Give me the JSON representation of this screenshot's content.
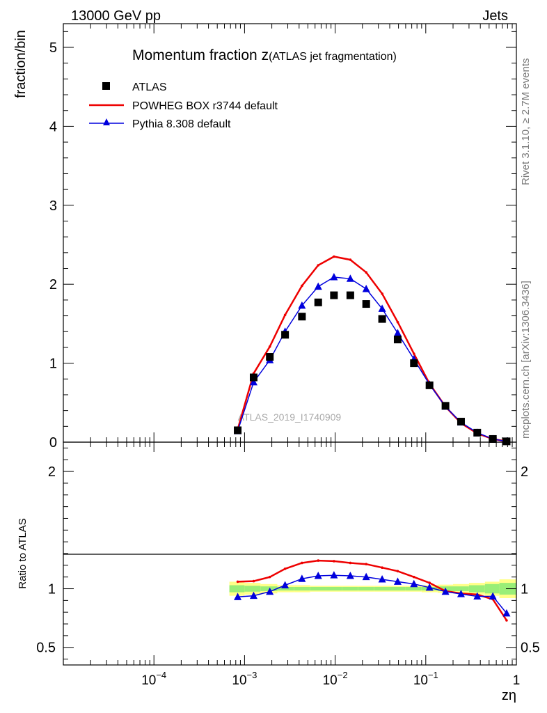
{
  "header": {
    "left": "13000 GeV pp",
    "right": "Jets"
  },
  "side_text": {
    "rivet": "Rivet 3.1.10, ≥ 2.7M events",
    "mcplots": "mcplots.cern.ch [arXiv:1306.3436]"
  },
  "chart_data": [
    {
      "type": "scatter",
      "title_main": "Momentum fraction z",
      "title_sub": "(ATLAS jet fragmentation)",
      "ylabel": "fraction/bin",
      "xscale": "log",
      "xlim": [
        1e-05,
        1
      ],
      "ylim": [
        0,
        5.3
      ],
      "yticks": [
        "0",
        "1",
        "2",
        "3",
        "4",
        "5"
      ],
      "watermark": "ATLAS_2019_I1740909",
      "legend_position": "top-left",
      "x": [
        0.00084,
        0.00126,
        0.0019,
        0.0028,
        0.0043,
        0.0065,
        0.0097,
        0.0147,
        0.022,
        0.033,
        0.049,
        0.074,
        0.11,
        0.165,
        0.245,
        0.37,
        0.55,
        0.78
      ],
      "series": [
        {
          "name": "ATLAS",
          "color": "#000000",
          "marker": "square",
          "values": [
            0.15,
            0.82,
            1.08,
            1.36,
            1.59,
            1.77,
            1.86,
            1.86,
            1.75,
            1.56,
            1.3,
            1.0,
            0.72,
            0.46,
            0.26,
            0.12,
            0.04,
            0.01
          ]
        },
        {
          "name": "POWHEG BOX r3744 default",
          "color": "#ee0000",
          "marker": "line",
          "values": [
            0.16,
            0.87,
            1.21,
            1.61,
            1.98,
            2.24,
            2.35,
            2.31,
            2.15,
            1.88,
            1.52,
            1.12,
            0.74,
            0.45,
            0.24,
            0.11,
            0.04,
            0.01
          ]
        },
        {
          "name": "Pythia 8.308 default",
          "color": "#0000dd",
          "marker": "triangle",
          "values": [
            0.14,
            0.76,
            1.04,
            1.4,
            1.73,
            1.97,
            2.09,
            2.07,
            1.94,
            1.69,
            1.38,
            1.05,
            0.73,
            0.45,
            0.25,
            0.12,
            0.04,
            0.01
          ]
        }
      ]
    },
    {
      "type": "line",
      "ylabel": "Ratio to ATLAS",
      "xlabel": "zη",
      "xscale": "log",
      "xlim": [
        1e-05,
        1
      ],
      "ylim": [
        0.35,
        2.25
      ],
      "yticks": [
        "0.5",
        "1",
        "2"
      ],
      "xtick_labels": [
        {
          "base": "10",
          "exp": "−4"
        },
        {
          "base": "10",
          "exp": "−3"
        },
        {
          "base": "10",
          "exp": "−2"
        },
        {
          "base": "10",
          "exp": "−1"
        },
        {
          "base": "1",
          "exp": ""
        }
      ],
      "band_colors": {
        "inner": "#99ee77",
        "outer": "#ffff88"
      },
      "bands": {
        "x_edges": [
          0.00068,
          0.001,
          0.0015,
          0.0023,
          0.0035,
          0.0053,
          0.008,
          0.012,
          0.018,
          0.027,
          0.04,
          0.06,
          0.09,
          0.135,
          0.2,
          0.3,
          0.45,
          0.65,
          1.0
        ],
        "inner": [
          0.03,
          0.025,
          0.02,
          0.015,
          0.015,
          0.015,
          0.015,
          0.015,
          0.015,
          0.015,
          0.015,
          0.015,
          0.015,
          0.02,
          0.02,
          0.03,
          0.04,
          0.05
        ],
        "outer": [
          0.06,
          0.05,
          0.04,
          0.03,
          0.03,
          0.025,
          0.025,
          0.025,
          0.025,
          0.025,
          0.025,
          0.025,
          0.03,
          0.035,
          0.04,
          0.05,
          0.06,
          0.08
        ]
      },
      "x": [
        0.00084,
        0.00126,
        0.0019,
        0.0028,
        0.0043,
        0.0065,
        0.0097,
        0.0147,
        0.022,
        0.033,
        0.049,
        0.074,
        0.11,
        0.165,
        0.245,
        0.37,
        0.55,
        0.78
      ],
      "series": [
        {
          "name": "POWHEG BOX r3744 default",
          "color": "#ee0000",
          "marker": "line",
          "values": [
            1.06,
            1.065,
            1.1,
            1.17,
            1.22,
            1.24,
            1.235,
            1.22,
            1.21,
            1.18,
            1.15,
            1.1,
            1.05,
            0.98,
            0.96,
            0.95,
            0.91,
            0.73
          ]
        },
        {
          "name": "Pythia 8.308 default",
          "color": "#0000dd",
          "marker": "triangle",
          "values": [
            0.93,
            0.94,
            0.975,
            1.03,
            1.085,
            1.11,
            1.115,
            1.11,
            1.1,
            1.08,
            1.06,
            1.04,
            1.01,
            0.975,
            0.955,
            0.935,
            0.935,
            0.79
          ]
        }
      ]
    }
  ]
}
